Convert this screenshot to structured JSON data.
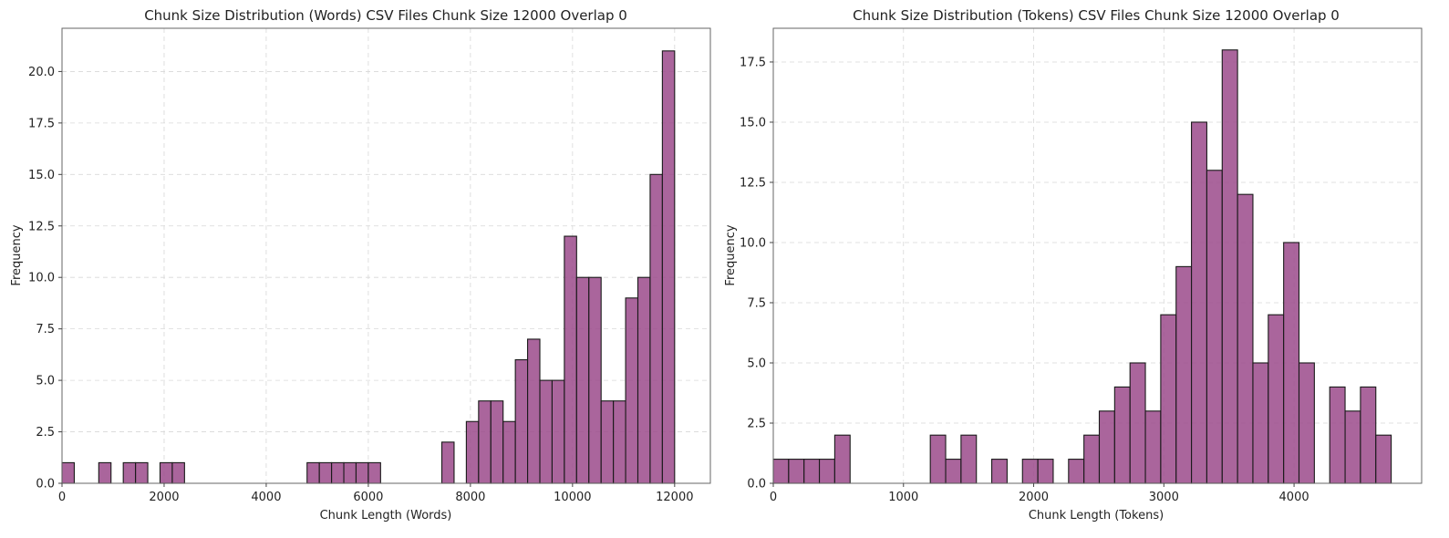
{
  "bar_color": "#9b4a8b",
  "chart_data": [
    {
      "type": "bar",
      "title": "Chunk Size Distribution (Words) CSV Files Chunk Size 12000 Overlap 0",
      "xlabel": "Chunk Length (Words)",
      "ylabel": "Frequency",
      "xlim": [
        0,
        12700
      ],
      "ylim": [
        0,
        22.1
      ],
      "xticks": [
        0,
        2000,
        4000,
        6000,
        8000,
        10000,
        12000
      ],
      "yticks": [
        0.0,
        2.5,
        5.0,
        7.5,
        10.0,
        12.5,
        15.0,
        17.5,
        20.0
      ],
      "grid": true,
      "bin_width": 240,
      "bins": [
        {
          "x": 0,
          "count": 1
        },
        {
          "x": 720,
          "count": 1
        },
        {
          "x": 1200,
          "count": 1
        },
        {
          "x": 1440,
          "count": 1
        },
        {
          "x": 1920,
          "count": 1
        },
        {
          "x": 2160,
          "count": 1
        },
        {
          "x": 4800,
          "count": 1
        },
        {
          "x": 5040,
          "count": 1
        },
        {
          "x": 5280,
          "count": 1
        },
        {
          "x": 5520,
          "count": 1
        },
        {
          "x": 5760,
          "count": 1
        },
        {
          "x": 6000,
          "count": 1
        },
        {
          "x": 7440,
          "count": 2
        },
        {
          "x": 7920,
          "count": 3
        },
        {
          "x": 8160,
          "count": 4
        },
        {
          "x": 8400,
          "count": 4
        },
        {
          "x": 8640,
          "count": 3
        },
        {
          "x": 8880,
          "count": 6
        },
        {
          "x": 9120,
          "count": 7
        },
        {
          "x": 9360,
          "count": 5
        },
        {
          "x": 9600,
          "count": 5
        },
        {
          "x": 9840,
          "count": 12
        },
        {
          "x": 10080,
          "count": 10
        },
        {
          "x": 10320,
          "count": 10
        },
        {
          "x": 10560,
          "count": 4
        },
        {
          "x": 10800,
          "count": 4
        },
        {
          "x": 11040,
          "count": 9
        },
        {
          "x": 11280,
          "count": 10
        },
        {
          "x": 11520,
          "count": 15
        },
        {
          "x": 11760,
          "count": 21
        }
      ]
    },
    {
      "type": "bar",
      "title": "Chunk Size Distribution (Tokens) CSV Files Chunk Size 12000 Overlap 0",
      "xlabel": "Chunk Length (Tokens)",
      "ylabel": "Frequency",
      "xlim": [
        0,
        4980
      ],
      "ylim": [
        0,
        18.9
      ],
      "xticks": [
        0,
        1000,
        2000,
        3000,
        4000
      ],
      "yticks": [
        0.0,
        2.5,
        5.0,
        7.5,
        10.0,
        12.5,
        15.0,
        17.5
      ],
      "grid": true,
      "bin_width": 118,
      "bins": [
        {
          "x": 0,
          "count": 1
        },
        {
          "x": 118,
          "count": 1
        },
        {
          "x": 236,
          "count": 1
        },
        {
          "x": 354,
          "count": 1
        },
        {
          "x": 472,
          "count": 2
        },
        {
          "x": 1206,
          "count": 2
        },
        {
          "x": 1324,
          "count": 1
        },
        {
          "x": 1442,
          "count": 2
        },
        {
          "x": 1678,
          "count": 1
        },
        {
          "x": 1914,
          "count": 1
        },
        {
          "x": 2032,
          "count": 1
        },
        {
          "x": 2268,
          "count": 1
        },
        {
          "x": 2386,
          "count": 2
        },
        {
          "x": 2504,
          "count": 3
        },
        {
          "x": 2622,
          "count": 4
        },
        {
          "x": 2740,
          "count": 5
        },
        {
          "x": 2858,
          "count": 3
        },
        {
          "x": 2976,
          "count": 7
        },
        {
          "x": 3094,
          "count": 9
        },
        {
          "x": 3212,
          "count": 15
        },
        {
          "x": 3330,
          "count": 13
        },
        {
          "x": 3448,
          "count": 18
        },
        {
          "x": 3566,
          "count": 12
        },
        {
          "x": 3684,
          "count": 5
        },
        {
          "x": 3802,
          "count": 7
        },
        {
          "x": 3920,
          "count": 10
        },
        {
          "x": 4038,
          "count": 5
        },
        {
          "x": 4274,
          "count": 4
        },
        {
          "x": 4392,
          "count": 3
        },
        {
          "x": 4510,
          "count": 4
        },
        {
          "x": 4628,
          "count": 2
        }
      ]
    }
  ]
}
